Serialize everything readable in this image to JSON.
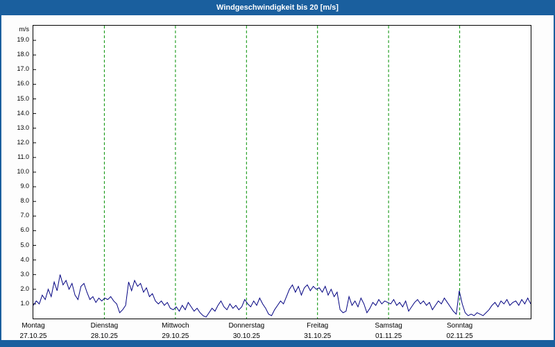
{
  "header": {
    "title": "Windgeschwindigkeit bis 20 [m/s]"
  },
  "colors": {
    "bar_blue": "#1a5f9e",
    "grid_green": "#009000",
    "line_navy": "#000080",
    "plot_border": "#000000",
    "plot_bg": "#ffffff"
  },
  "chart_data": {
    "type": "line",
    "title": "Windgeschwindigkeit bis 20 [m/s]",
    "ylabel": "m/s",
    "xlabel": "",
    "ylim": [
      0,
      20
    ],
    "y_tick_step": 1,
    "y_tick_labels": [
      "19.0",
      "18.0",
      "17.0",
      "16.0",
      "15.0",
      "14.0",
      "13.0",
      "12.0",
      "11.0",
      "10.0",
      "9.0",
      "8.0",
      "7.0",
      "6.0",
      "5.0",
      "4.0",
      "3.0",
      "2.0",
      "1.0"
    ],
    "grid": "vertical dashed green lines at day boundaries",
    "legend_position": "none",
    "points_per_day": 24,
    "days": [
      {
        "name": "Montag",
        "date": "27.10.25"
      },
      {
        "name": "Dienstag",
        "date": "28.10.25"
      },
      {
        "name": "Mittwoch",
        "date": "29.10.25"
      },
      {
        "name": "Donnerstag",
        "date": "30.10.25"
      },
      {
        "name": "Freitag",
        "date": "31.10.25"
      },
      {
        "name": "Samstag",
        "date": "01.11.25"
      },
      {
        "name": "Sonntag",
        "date": "02.11.25"
      }
    ],
    "series": [
      {
        "name": "Windgeschwindigkeit",
        "unit": "m/s",
        "color": "#000080",
        "values": [
          0.9,
          1.2,
          1.0,
          1.6,
          1.3,
          2.0,
          1.5,
          2.5,
          1.9,
          3.0,
          2.3,
          2.6,
          2.0,
          2.4,
          1.6,
          1.3,
          2.2,
          2.4,
          1.8,
          1.3,
          1.5,
          1.1,
          1.4,
          1.2,
          1.4,
          1.3,
          1.5,
          1.2,
          1.0,
          0.4,
          0.6,
          0.9,
          2.5,
          1.9,
          2.6,
          2.2,
          2.4,
          1.8,
          2.1,
          1.5,
          1.7,
          1.2,
          1.0,
          1.2,
          0.9,
          1.1,
          0.7,
          0.6,
          0.8,
          0.5,
          0.9,
          0.6,
          1.1,
          0.8,
          0.5,
          0.7,
          0.4,
          0.2,
          0.1,
          0.4,
          0.7,
          0.5,
          0.9,
          1.2,
          0.8,
          0.6,
          1.0,
          0.7,
          0.9,
          0.6,
          0.8,
          1.3,
          1.0,
          0.8,
          1.2,
          0.9,
          1.4,
          1.0,
          0.7,
          0.3,
          0.2,
          0.6,
          0.9,
          1.2,
          1.0,
          1.5,
          2.0,
          2.3,
          1.8,
          2.2,
          1.6,
          2.1,
          2.3,
          1.9,
          2.2,
          2.0,
          2.1,
          1.8,
          2.2,
          1.6,
          2.0,
          1.5,
          1.8,
          0.6,
          0.4,
          0.5,
          1.5,
          0.9,
          1.2,
          0.8,
          1.4,
          1.0,
          0.4,
          0.7,
          1.1,
          0.9,
          1.3,
          1.0,
          1.2,
          1.1,
          1.0,
          1.3,
          0.9,
          1.1,
          0.8,
          1.2,
          0.5,
          0.8,
          1.1,
          1.3,
          1.0,
          1.2,
          0.9,
          1.1,
          0.6,
          0.9,
          1.2,
          1.0,
          1.4,
          1.1,
          0.8,
          0.5,
          0.3,
          1.9,
          1.0,
          0.4,
          0.2,
          0.3,
          0.2,
          0.4,
          0.3,
          0.2,
          0.4,
          0.6,
          0.9,
          1.1,
          0.8,
          1.2,
          1.0,
          1.3,
          0.9,
          1.1,
          1.2,
          0.9,
          1.3,
          1.0,
          1.4,
          1.0
        ]
      }
    ]
  }
}
